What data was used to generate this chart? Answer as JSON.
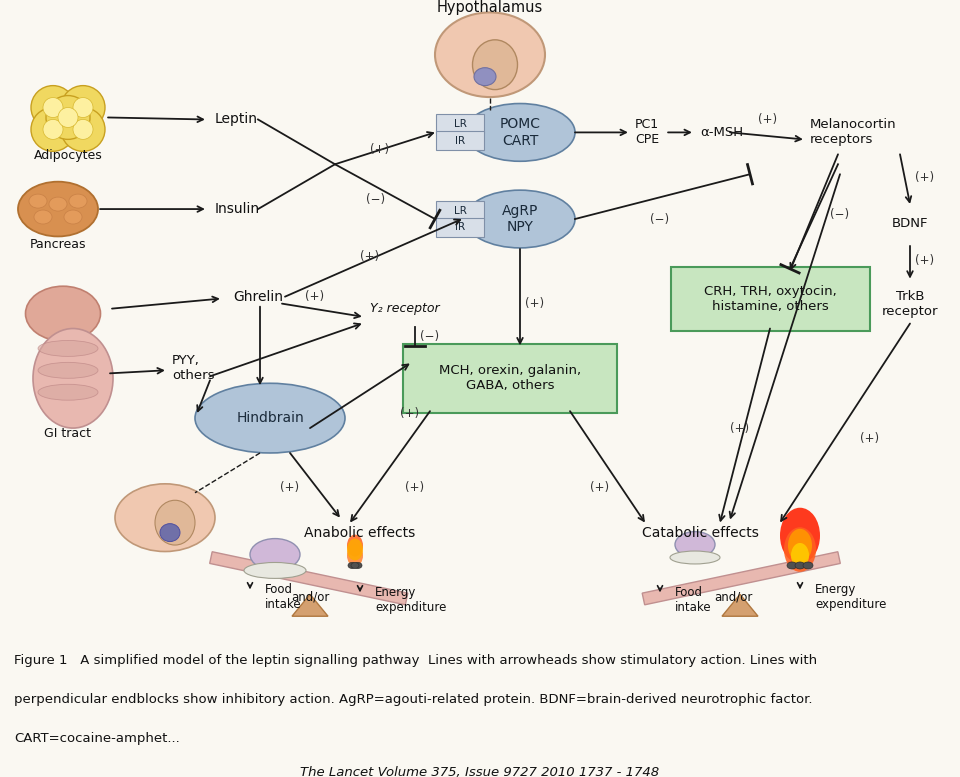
{
  "bg_color": "#faf8f2",
  "caption_bg": "#e8e0d0",
  "arrow_color": "#1a1a1a",
  "text_color": "#111111",
  "green_box_face": "#c8e6c0",
  "green_box_edge": "#4a9a5a",
  "blue_ellipse_face": "#b0c4d8",
  "blue_ellipse_edge": "#6080a0",
  "receptor_box_face": "#d0dcea",
  "receptor_box_edge": "#607090",
  "caption_line1": "Figure 1   A simplified model of the leptin signalling pathway  Lines with arrowheads show stimulatory action. Lines with",
  "caption_line2": "perpendicular endblocks show inhibitory action. AgRP=agouti-related protein. BDNF=brain-derived neurotrophic factor.",
  "caption_line3": "CART=cocaine-amphet...",
  "caption_line4": "The Lancet Volume 375, Issue 9727 2010 1737 - 1748",
  "scale_color": "#e8c0b8",
  "scale_edge": "#c09090"
}
